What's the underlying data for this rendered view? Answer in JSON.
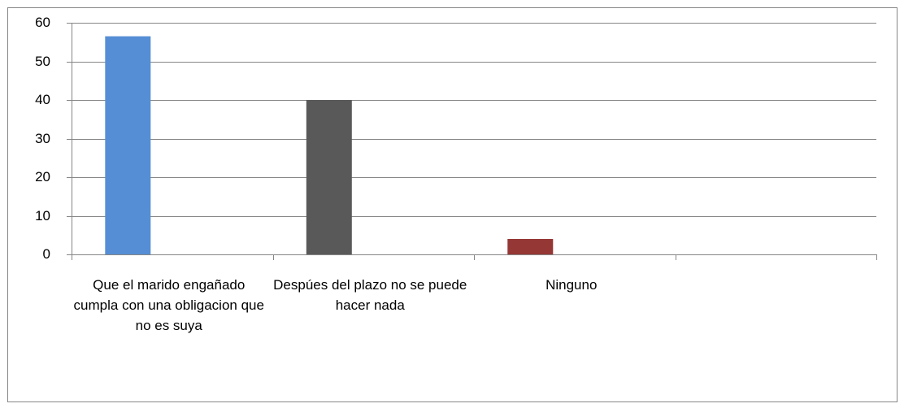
{
  "chart_data": {
    "type": "bar",
    "categories": [
      "Que el marido engañado cumpla con una obligacion que no es suya",
      "Despúes del plazo no se puede hacer nada",
      "Ninguno",
      null
    ],
    "values": [
      56.5,
      40,
      4,
      null
    ],
    "colors": [
      "#558ed5",
      "#595959",
      "#953735"
    ],
    "ylim": [
      0,
      60
    ],
    "yticks": [
      0,
      10,
      20,
      30,
      40,
      50,
      60
    ],
    "grid": true
  }
}
